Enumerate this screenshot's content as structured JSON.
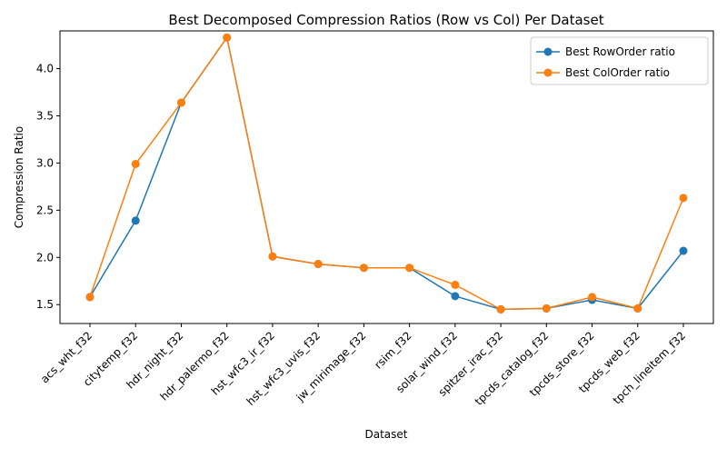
{
  "chart_data": {
    "type": "line",
    "title": "Best Decomposed Compression Ratios (Row vs Col) Per Dataset",
    "xlabel": "Dataset",
    "ylabel": "Compression Ratio",
    "categories": [
      "acs_wht_f32",
      "citytemp_f32",
      "hdr_night_f32",
      "hdr_palermo_f32",
      "hst_wfc3_ir_f32",
      "hst_wfc3_uvis_f32",
      "jw_mirimage_f32",
      "rsim_f32",
      "solar_wind_f32",
      "spitzer_irac_f32",
      "tpcds_catalog_f32",
      "tpcds_store_f32",
      "tpcds_web_f32",
      "tpch_lineitem_f32"
    ],
    "series": [
      {
        "name": "Best RowOrder ratio",
        "color": "#1f77b4",
        "values": [
          1.58,
          2.39,
          3.64,
          4.33,
          2.01,
          1.93,
          1.89,
          1.89,
          1.59,
          1.45,
          1.46,
          1.55,
          1.46,
          2.07
        ]
      },
      {
        "name": "Best ColOrder ratio",
        "color": "#ff7f0e",
        "values": [
          1.58,
          2.99,
          3.64,
          4.33,
          2.01,
          1.93,
          1.89,
          1.89,
          1.71,
          1.45,
          1.46,
          1.58,
          1.46,
          2.63
        ]
      }
    ],
    "ylim": [
      1.3,
      4.4
    ],
    "yticks": [
      1.5,
      2.0,
      2.5,
      3.0,
      3.5,
      4.0
    ],
    "ytick_labels": [
      "1.5",
      "2.0",
      "2.5",
      "3.0",
      "3.5",
      "4.0"
    ],
    "grid": false,
    "legend_position": "top-right"
  }
}
